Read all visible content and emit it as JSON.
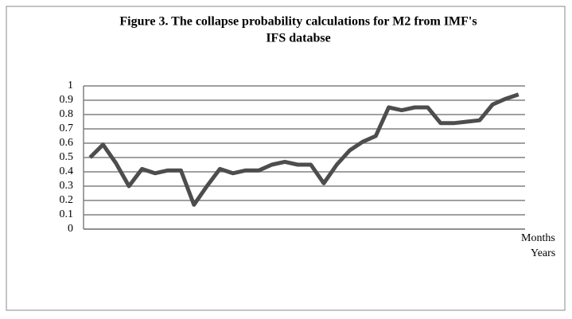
{
  "chart_data": {
    "type": "line",
    "title": "Figure 3. The collapse probability calculations for M2 from IMF's",
    "subtitle": "IFS databse",
    "x_label": "Months",
    "x_label_secondary": "Years",
    "categories": [
      null,
      null,
      null,
      null,
      null,
      null,
      null,
      null,
      null,
      null,
      null,
      null,
      null,
      null,
      null,
      null,
      null,
      null,
      null,
      null,
      null,
      null,
      null,
      null,
      null,
      null,
      null,
      null,
      null,
      null,
      null,
      null,
      null,
      null
    ],
    "series": [
      {
        "color": "#4d4d4d",
        "values": [
          0.5,
          0.59,
          0.46,
          0.3,
          0.42,
          0.39,
          0.41,
          0.41,
          0.17,
          0.3,
          0.42,
          0.39,
          0.41,
          0.41,
          0.45,
          0.47,
          0.45,
          0.45,
          0.32,
          0.45,
          0.55,
          0.61,
          0.65,
          0.85,
          0.83,
          0.85,
          0.85,
          0.74,
          0.74,
          0.75,
          0.76,
          0.87,
          0.91,
          0.94
        ]
      }
    ],
    "ylim": [
      0,
      1
    ],
    "yticks": [
      0,
      0.1,
      0.2,
      0.3,
      0.4,
      0.5,
      0.6,
      0.7,
      0.8,
      0.9,
      1
    ],
    "grid": true
  }
}
